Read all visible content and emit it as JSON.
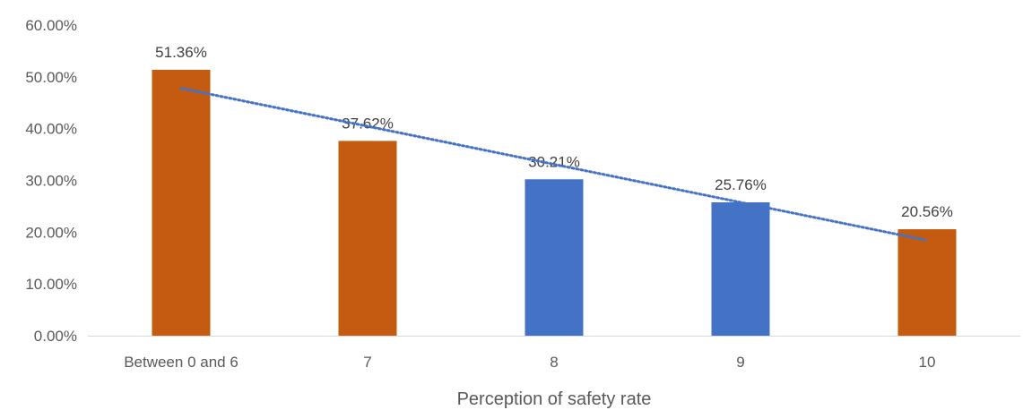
{
  "chart_data": {
    "type": "bar",
    "title": "",
    "xlabel": "Perception of safety rate",
    "ylabel": "",
    "categories": [
      "Between 0 and 6",
      "7",
      "8",
      "9",
      "10"
    ],
    "values": [
      51.36,
      37.62,
      30.21,
      25.76,
      20.56
    ],
    "data_labels": [
      "51.36%",
      "37.62%",
      "30.21%",
      "25.76%",
      "20.56%"
    ],
    "bar_colors": [
      "#C55A11",
      "#C55A11",
      "#4472C4",
      "#4472C4",
      "#C55A11"
    ],
    "ylim": [
      0,
      60
    ],
    "yticks": [
      0,
      10,
      20,
      30,
      40,
      50,
      60
    ],
    "ytick_labels": [
      "0.00%",
      "10.00%",
      "20.00%",
      "30.00%",
      "40.00%",
      "50.00%",
      "60.00%"
    ],
    "trendline": {
      "type": "linear",
      "style": "dotted",
      "color": "#4472C4"
    },
    "grid": false,
    "legend": "none"
  }
}
